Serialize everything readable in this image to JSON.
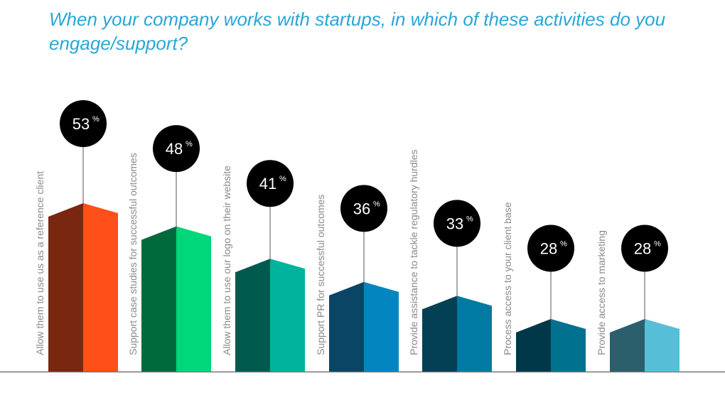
{
  "chart_data": {
    "type": "bar",
    "title": "When your company works with startups, in which of these activities do you engage/support?",
    "categories": [
      "Allow them to use us as a reference client",
      "Support case studies for successful outcomes",
      "Allow them to use our logo on their website",
      "Support PR for successful outcomes",
      "Provide assistance to tackle regulatory hurdles",
      "Process access to your client base",
      "Provide access to marketing"
    ],
    "values": [
      53,
      48,
      41,
      36,
      33,
      28,
      28
    ],
    "value_labels": [
      "53",
      "48",
      "41",
      "36",
      "33",
      "28",
      "28"
    ],
    "unit": "%",
    "colors": [
      [
        "#7a2711",
        "#ff5019"
      ],
      [
        "#006a3c",
        "#00d67a"
      ],
      [
        "#005a4e",
        "#00b39c"
      ],
      [
        "#0a4566",
        "#0386c0"
      ],
      [
        "#033f55",
        "#017aa3"
      ],
      [
        "#00384a",
        "#00728f"
      ],
      [
        "#2b5f6b",
        "#56bfd7"
      ]
    ],
    "grid": false
  }
}
